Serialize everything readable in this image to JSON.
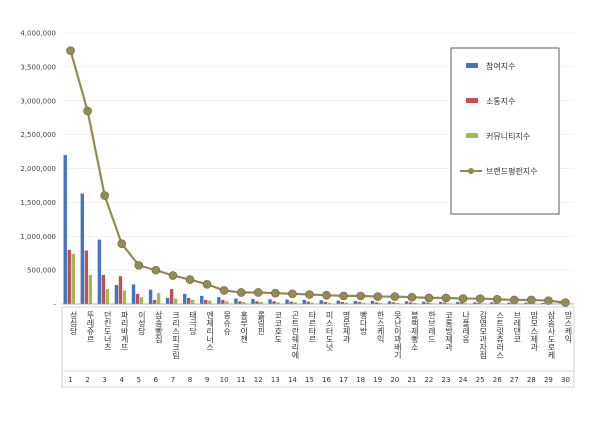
{
  "chart_data": {
    "type": "bar",
    "title": "",
    "xlabel": "",
    "ylabel": "",
    "ylim": [
      0,
      4000000
    ],
    "yticks": [
      "4,000,000",
      "3,500,000",
      "3,000,000",
      "2,500,000",
      "2,000,000",
      "1,500,000",
      "1,000,000",
      "500,000",
      "-"
    ],
    "legend_position": "top-right",
    "categories": [
      "성심당",
      "뚜레쥬르",
      "던킨도너츠",
      "파리바게뜨",
      "이성당",
      "삼송빵집",
      "크리스피크림",
      "태극당",
      "엔제리너스",
      "몽슈슈",
      "홍루이젠",
      "롤링핀",
      "코코호도",
      "곤트란쉐리에",
      "타르타르",
      "미스터도넛",
      "명문제과",
      "빵다방",
      "한스케익",
      "못난이꽈배기",
      "블랙제빵소",
      "한브레드",
      "코롱방제과",
      "나폴레옹",
      "김영모과자점",
      "스트릿츄러스",
      "브레댄코",
      "맘모스제과",
      "삼송사도로케",
      "망스케익"
    ],
    "indices": [
      "1",
      "2",
      "3",
      "4",
      "5",
      "6",
      "7",
      "8",
      "9",
      "10",
      "11",
      "12",
      "13",
      "14",
      "15",
      "16",
      "17",
      "18",
      "19",
      "20",
      "21",
      "22",
      "23",
      "24",
      "25",
      "26",
      "27",
      "28",
      "29",
      "30"
    ],
    "series": [
      {
        "name": "참여지수",
        "color": "#4472C4",
        "values": [
          2200000,
          1630000,
          950000,
          280000,
          290000,
          210000,
          90000,
          150000,
          120000,
          100000,
          80000,
          75000,
          70000,
          65000,
          60000,
          55000,
          50000,
          45000,
          45000,
          40000,
          40000,
          35000,
          30000,
          30000,
          25000,
          25000,
          20000,
          20000,
          15000,
          10000
        ]
      },
      {
        "name": "소통지수",
        "color": "#C0504D",
        "values": [
          800000,
          790000,
          430000,
          410000,
          150000,
          60000,
          220000,
          90000,
          60000,
          60000,
          40000,
          40000,
          40000,
          35000,
          35000,
          30000,
          30000,
          30000,
          25000,
          25000,
          25000,
          20000,
          20000,
          20000,
          15000,
          15000,
          15000,
          10000,
          10000,
          10000
        ]
      },
      {
        "name": "커뮤니티지수",
        "color": "#9BBB59",
        "values": [
          740000,
          430000,
          220000,
          200000,
          100000,
          160000,
          80000,
          60000,
          50000,
          40000,
          30000,
          30000,
          25000,
          25000,
          20000,
          20000,
          20000,
          15000,
          15000,
          15000,
          15000,
          10000,
          10000,
          10000,
          10000,
          10000,
          10000,
          10000,
          8000,
          8000
        ]
      },
      {
        "name": "브랜드평판지수",
        "color": "#948A54",
        "type": "line",
        "values": [
          3740000,
          2850000,
          1600000,
          890000,
          570000,
          500000,
          420000,
          360000,
          290000,
          200000,
          170000,
          170000,
          160000,
          150000,
          140000,
          130000,
          120000,
          120000,
          110000,
          110000,
          100000,
          90000,
          90000,
          80000,
          80000,
          70000,
          60000,
          60000,
          50000,
          20000
        ]
      }
    ]
  }
}
